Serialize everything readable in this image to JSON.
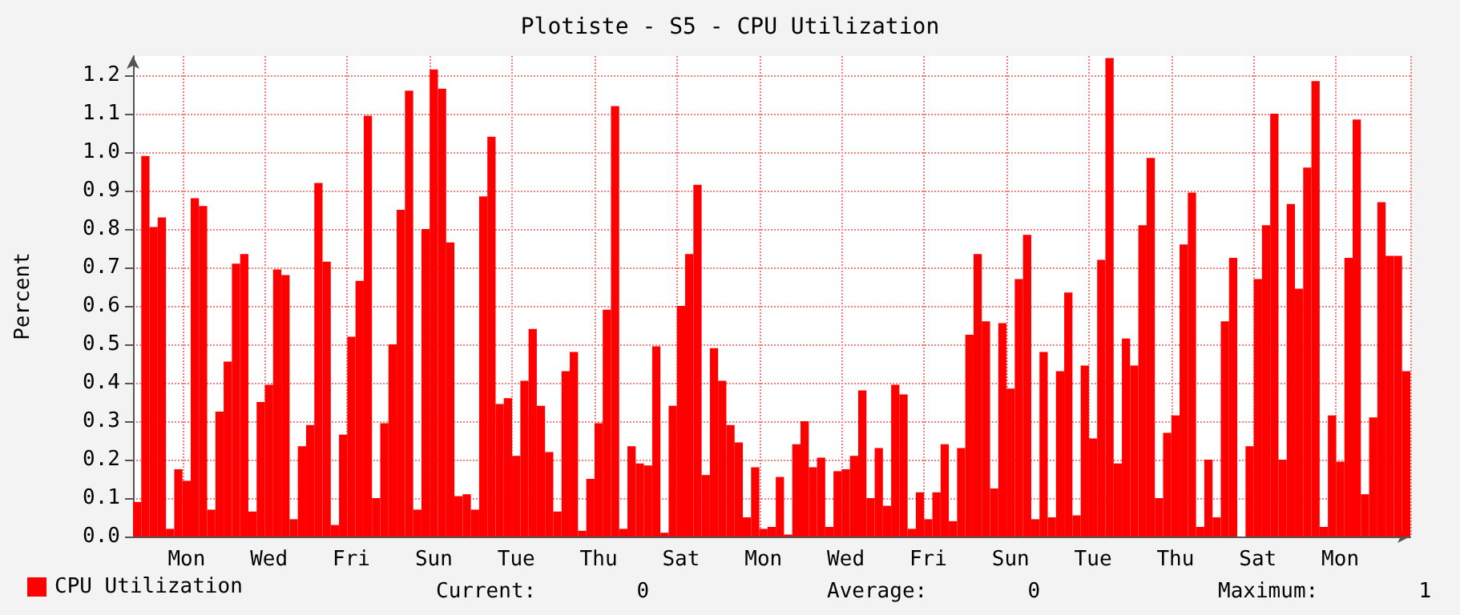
{
  "chart_data": {
    "type": "bar",
    "title": "Plotiste - S5 - CPU Utilization",
    "ylabel": "Percent",
    "categories": [
      null,
      null,
      null,
      null,
      null,
      null,
      "Mon",
      null,
      null,
      null,
      null,
      null,
      null,
      null,
      null,
      null,
      "Wed",
      null,
      null,
      null,
      null,
      null,
      null,
      null,
      null,
      null,
      "Fri",
      null,
      null,
      null,
      null,
      null,
      null,
      null,
      null,
      null,
      "Sun",
      null,
      null,
      null,
      null,
      null,
      null,
      null,
      null,
      null,
      "Tue",
      null,
      null,
      null,
      null,
      null,
      null,
      null,
      null,
      null,
      "Thu",
      null,
      null,
      null,
      null,
      null,
      null,
      null,
      null,
      null,
      "Sat",
      null,
      null,
      null,
      null,
      null,
      null,
      null,
      null,
      null,
      "Mon",
      null,
      null,
      null,
      null,
      null,
      null,
      null,
      null,
      null,
      "Wed",
      null,
      null,
      null,
      null,
      null,
      null,
      null,
      null,
      null,
      "Fri",
      null,
      null,
      null,
      null,
      null,
      null,
      null,
      null,
      null,
      "Sun",
      null,
      null,
      null,
      null,
      null,
      null,
      null,
      null,
      null,
      "Tue",
      null,
      null,
      null,
      null,
      null,
      null,
      null,
      null,
      null,
      "Thu",
      null,
      null,
      null,
      null,
      null,
      null,
      null,
      null,
      null,
      "Sat",
      null,
      null,
      null,
      null,
      null,
      null,
      null,
      null,
      null,
      "Mon",
      null,
      null,
      null,
      null,
      null,
      null,
      null,
      null
    ],
    "series": [
      {
        "name": "CPU Utilization",
        "color": "#ff0000",
        "values": [
          0.09,
          0.99,
          0.805,
          0.83,
          0.02,
          0.175,
          0.145,
          0.88,
          0.86,
          0.07,
          0.325,
          0.455,
          0.71,
          0.735,
          0.065,
          0.35,
          0.395,
          0.695,
          0.68,
          0.045,
          0.235,
          0.29,
          0.92,
          0.715,
          0.03,
          0.265,
          0.52,
          0.665,
          1.095,
          0.1,
          0.295,
          0.5,
          0.85,
          1.16,
          0.07,
          0.8,
          1.215,
          1.165,
          0.765,
          0.105,
          0.11,
          0.07,
          0.885,
          1.04,
          0.345,
          0.36,
          0.21,
          0.405,
          0.54,
          0.34,
          0.22,
          0.065,
          0.43,
          0.48,
          0.015,
          0.15,
          0.295,
          0.59,
          1.12,
          0.02,
          0.235,
          0.19,
          0.185,
          0.495,
          0.01,
          0.34,
          0.6,
          0.735,
          0.915,
          0.16,
          0.49,
          0.405,
          0.29,
          0.245,
          0.05,
          0.18,
          0.02,
          0.025,
          0.155,
          0.005,
          0.24,
          0.3,
          0.18,
          0.205,
          0.025,
          0.17,
          0.175,
          0.21,
          0.38,
          0.1,
          0.23,
          0.08,
          0.395,
          0.37,
          0.02,
          0.115,
          0.045,
          0.115,
          0.24,
          0.04,
          0.23,
          0.525,
          0.735,
          0.56,
          0.125,
          0.555,
          0.385,
          0.67,
          0.785,
          0.045,
          0.48,
          0.05,
          0.43,
          0.635,
          0.055,
          0.445,
          0.255,
          0.72,
          1.245,
          0.19,
          0.515,
          0.445,
          0.81,
          0.985,
          0.1,
          0.27,
          0.315,
          0.76,
          0.895,
          0.025,
          0.2,
          0.05,
          0.56,
          0.725,
          0,
          0.235,
          0.67,
          0.81,
          1.1,
          0.2,
          0.865,
          0.645,
          0.96,
          1.185,
          0.025,
          0.315,
          0.195,
          0.725,
          1.085,
          0.11,
          0.31,
          0.87,
          0.73,
          0.73,
          0.43
        ]
      }
    ],
    "ylim": [
      0,
      1.25
    ],
    "yticks": [
      {
        "value": 0,
        "label": "0.0"
      },
      0.1,
      0.2,
      0.3,
      0.4,
      0.5,
      0.6,
      0.7,
      0.8,
      0.9,
      {
        "value": 1,
        "label": "1.0"
      },
      1.1,
      1.2
    ],
    "grid": true,
    "legend": "bottom left",
    "annotations": [
      "Current:        0",
      "Average:        0",
      "Maximum:        1"
    ]
  }
}
